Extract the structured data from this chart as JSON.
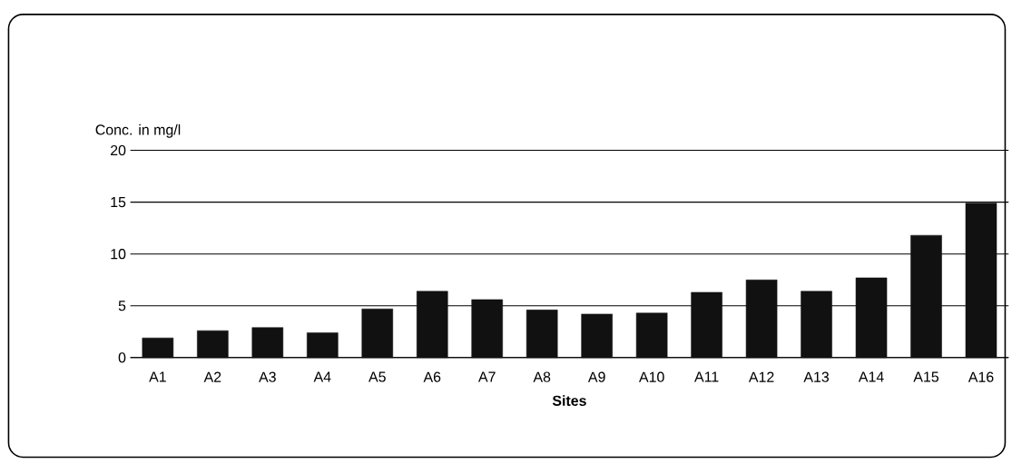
{
  "chart_data": {
    "type": "bar",
    "xlabel": "Sites",
    "ylabel": "Conc. in mg/l",
    "categories": [
      "A1",
      "A2",
      "A3",
      "A4",
      "A5",
      "A6",
      "A7",
      "A8",
      "A9",
      "A10",
      "A11",
      "A12",
      "A13",
      "A14",
      "A15",
      "A16"
    ],
    "values": [
      1.9,
      2.6,
      2.9,
      2.4,
      4.7,
      6.4,
      5.6,
      4.6,
      4.2,
      4.3,
      6.3,
      7.5,
      6.4,
      7.7,
      11.8,
      14.9
    ],
    "color": "#111111",
    "ylim": [
      0,
      20
    ],
    "yticks": [
      0,
      5,
      10,
      15,
      20
    ],
    "grid": "y"
  }
}
